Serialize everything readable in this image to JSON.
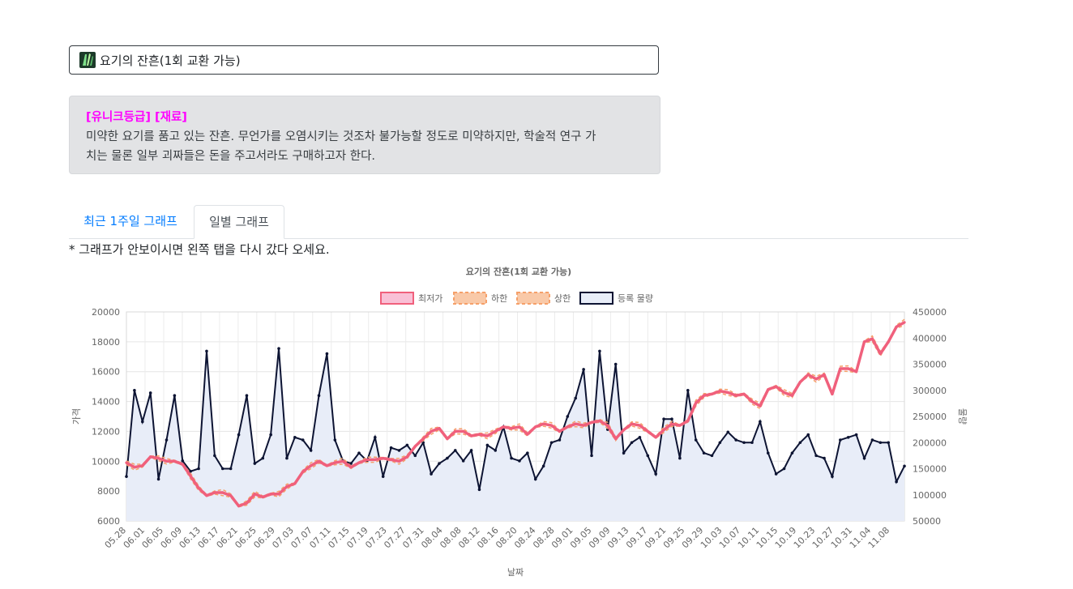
{
  "item": {
    "name": "요기의 잔흔(1회 교환 가능)"
  },
  "description": {
    "grade_label": "[유니크등급] [재료]",
    "text_line1": "미약한 요기를 품고 있는 잔흔. 무언가를 오염시키는 것조차 불가능할 정도로 미약하지만, 학술적 연구 가",
    "text_line2": "치는 물론 일부 괴짜들은 돈을 주고서라도 구매하고자 한다."
  },
  "tabs": [
    {
      "label": "최근 1주일 그래프"
    },
    {
      "label": "일별 그래프"
    }
  ],
  "note": "* 그래프가 안보이시면 왼쪽 탭을 다시 갔다 오세요.",
  "colors": {
    "price": "#f0607c",
    "bound": "#f5a06a",
    "volume": "#0d1433",
    "volume_fill": "#e8edf8"
  },
  "chart_data": {
    "type": "line",
    "title": "요기의 잔흔(1회 교환 가능)",
    "xlabel": "날짜",
    "ylabel_left": "가격",
    "ylabel_right": "물량",
    "ylim_left": [
      6000,
      20000
    ],
    "yticks_left": [
      "6000",
      "8000",
      "10000",
      "12000",
      "14000",
      "16000",
      "18000",
      "20000"
    ],
    "ylim_right": [
      50000,
      450000
    ],
    "yticks_right": [
      "50000",
      "100000",
      "150000",
      "200000",
      "250000",
      "300000",
      "350000",
      "400000",
      "450000"
    ],
    "legend": [
      "최저가",
      "하한",
      "상한",
      "등록 물량"
    ],
    "x_tick_labels": [
      "05.28",
      "06.01",
      "06.05",
      "06.09",
      "06.13",
      "06.17",
      "06.21",
      "06.25",
      "06.29",
      "07.03",
      "07.07",
      "07.11",
      "07.15",
      "07.19",
      "07.23",
      "07.27",
      "07.31",
      "08.04",
      "08.08",
      "08.12",
      "08.16",
      "08.20",
      "08.24",
      "08.28",
      "09.01",
      "09.05",
      "09.09",
      "09.13",
      "09.17",
      "09.21",
      "09.25",
      "09.29",
      "10.03",
      "10.07",
      "10.11",
      "10.15",
      "10.19",
      "10.23",
      "10.27",
      "10.31",
      "11.04",
      "11.08"
    ],
    "series": [
      {
        "name": "최저가",
        "values": [
          9900,
          9600,
          9700,
          10300,
          10200,
          10000,
          10000,
          9800,
          9000,
          8200,
          7700,
          7900,
          7900,
          7700,
          7000,
          7200,
          7800,
          7600,
          7800,
          7800,
          8300,
          8500,
          9300,
          9700,
          10000,
          9700,
          9900,
          10000,
          9600,
          9900,
          10100,
          10100,
          10200,
          10100,
          10000,
          10300,
          11000,
          11500,
          12000,
          12200,
          11500,
          12000,
          12000,
          11700,
          11800,
          11700,
          12000,
          12300,
          12200,
          12300,
          11800,
          12300,
          12500,
          12400,
          12000,
          12300,
          12500,
          12400,
          12600,
          12700,
          12400,
          11500,
          12100,
          12500,
          12400,
          12000,
          11600,
          12100,
          12500,
          12400,
          12700,
          13900,
          14400,
          14500,
          14700,
          14600,
          14400,
          14500,
          14000,
          13700,
          14800,
          15000,
          14600,
          14400,
          15300,
          15800,
          15500,
          15800,
          14500,
          16200,
          16200,
          16000,
          18000,
          18200,
          17200,
          18000,
          19000,
          19300
        ]
      },
      {
        "name": "물량",
        "values": [
          135000,
          300000,
          240000,
          295000,
          130000,
          205000,
          290000,
          165000,
          145000,
          150000,
          375000,
          175000,
          150000,
          150000,
          215000,
          290000,
          160000,
          170000,
          215000,
          380000,
          170000,
          210000,
          205000,
          185000,
          290000,
          370000,
          205000,
          165000,
          160000,
          180000,
          165000,
          210000,
          135000,
          190000,
          185000,
          195000,
          175000,
          200000,
          140000,
          160000,
          170000,
          185000,
          165000,
          185000,
          110000,
          195000,
          185000,
          230000,
          170000,
          165000,
          180000,
          130000,
          155000,
          200000,
          205000,
          250000,
          285000,
          340000,
          175000,
          375000,
          225000,
          350000,
          180000,
          200000,
          210000,
          175000,
          140000,
          245000,
          245000,
          170000,
          300000,
          205000,
          180000,
          175000,
          200000,
          220000,
          205000,
          200000,
          200000,
          240000,
          180000,
          140000,
          150000,
          180000,
          200000,
          215000,
          175000,
          170000,
          135000,
          205000,
          210000,
          215000,
          170000,
          205000,
          200000,
          200000,
          125000,
          155000
        ]
      }
    ]
  }
}
